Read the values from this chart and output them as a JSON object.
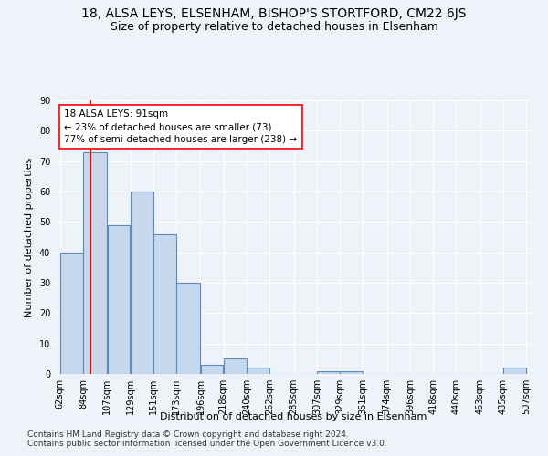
{
  "title": "18, ALSA LEYS, ELSENHAM, BISHOP'S STORTFORD, CM22 6JS",
  "subtitle": "Size of property relative to detached houses in Elsenham",
  "xlabel": "Distribution of detached houses by size in Elsenham",
  "ylabel": "Number of detached properties",
  "bar_color": "#c5d8ed",
  "bar_edge_color": "#5b8db8",
  "vline_x": 91,
  "vline_color": "red",
  "annotation_text": "18 ALSA LEYS: 91sqm\n← 23% of detached houses are smaller (73)\n77% of semi-detached houses are larger (238) →",
  "annotation_box_color": "white",
  "annotation_box_edge_color": "red",
  "bins": [
    62,
    84,
    107,
    129,
    151,
    173,
    196,
    218,
    240,
    262,
    285,
    307,
    329,
    351,
    374,
    396,
    418,
    440,
    463,
    485,
    507
  ],
  "counts": [
    40,
    73,
    49,
    60,
    46,
    30,
    3,
    5,
    2,
    0,
    0,
    1,
    1,
    0,
    0,
    0,
    0,
    0,
    0,
    2
  ],
  "ylim": [
    0,
    90
  ],
  "yticks": [
    0,
    10,
    20,
    30,
    40,
    50,
    60,
    70,
    80,
    90
  ],
  "footer1": "Contains HM Land Registry data © Crown copyright and database right 2024.",
  "footer2": "Contains public sector information licensed under the Open Government Licence v3.0.",
  "background_color": "#eef2f9",
  "grid_color": "#ffffff",
  "title_fontsize": 10,
  "subtitle_fontsize": 9,
  "label_fontsize": 8,
  "tick_fontsize": 7,
  "annotation_fontsize": 7.5,
  "footer_fontsize": 6.5
}
